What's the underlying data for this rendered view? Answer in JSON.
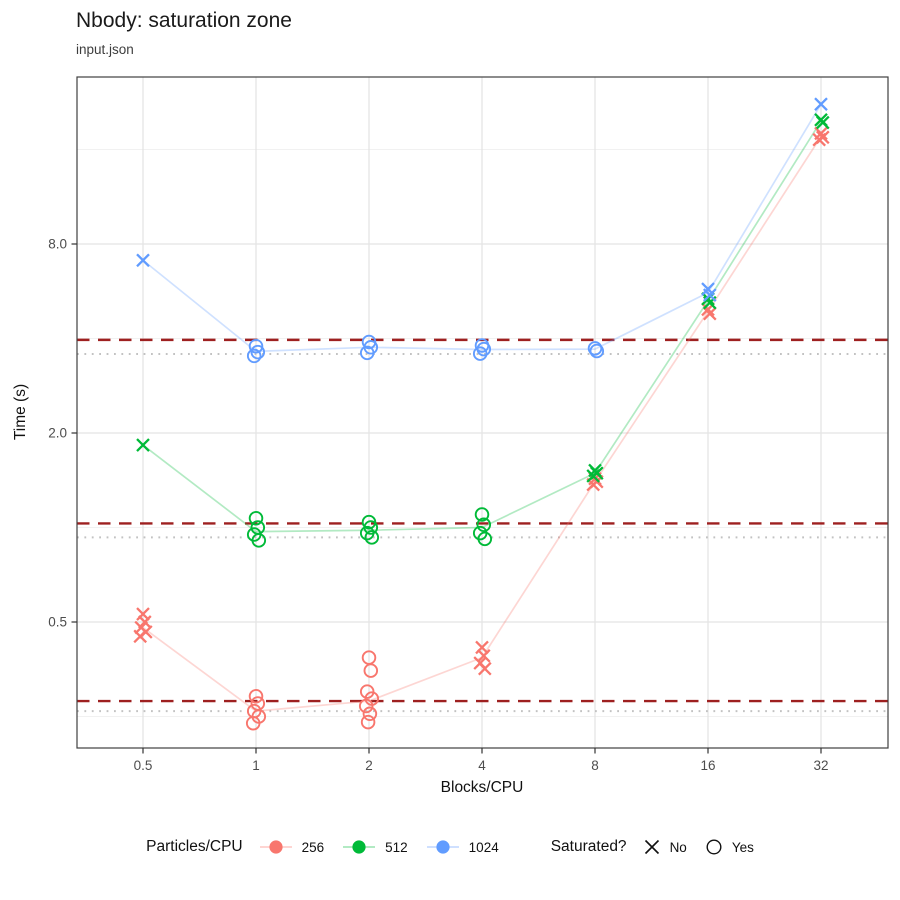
{
  "header": {
    "title": "Nbody: saturation zone",
    "subtitle": "input.json"
  },
  "axes": {
    "x_label": "Blocks/CPU",
    "y_label": "Time (s)",
    "x_tick_labels": [
      "0.5",
      "1",
      "2",
      "4",
      "8",
      "16",
      "32"
    ],
    "y_tick_labels": [
      "0.5",
      "2.0",
      "8.0"
    ]
  },
  "legend": {
    "color_title": "Particles/CPU",
    "color_items": [
      {
        "label": "256",
        "color": "#F8766D"
      },
      {
        "label": "512",
        "color": "#00BA38"
      },
      {
        "label": "1024",
        "color": "#619CFF"
      }
    ],
    "shape_title": "Saturated?",
    "shape_items": [
      {
        "label": "No",
        "shape": "x"
      },
      {
        "label": "Yes",
        "shape": "circle"
      }
    ]
  },
  "colors": {
    "dashed_refline": "#9E2020",
    "dotted_refline": "#C2C2C2",
    "grid_major": "#E4E4E4",
    "grid_minor": "#F1F1F1",
    "panel_border": "#404040",
    "tick_text": "#4d4d4d"
  },
  "chart_data": {
    "type": "scatter",
    "title": "Nbody: saturation zone",
    "subtitle": "input.json",
    "xlabel": "Blocks/CPU",
    "ylabel": "Time (s)",
    "x_scale": "log2",
    "y_scale": "log2",
    "grid": true,
    "legend_position": "bottom",
    "x_ticks": [
      0.5,
      1,
      2,
      4,
      8,
      16,
      32
    ],
    "y_major_ticks": [
      0.5,
      2.0,
      8.0
    ],
    "y_minor_gridlines": [
      0.25,
      1.0,
      4.0,
      16.0
    ],
    "xlim": [
      0.33,
      48
    ],
    "ylim": [
      0.2,
      27.5
    ],
    "hlines_dashed": {
      "style": "dashed",
      "color": "#9E2020",
      "values": [
        3.96,
        1.03,
        0.28
      ]
    },
    "hlines_dotted": {
      "style": "dotted",
      "color": "#C2C2C2",
      "values": [
        3.57,
        0.93,
        0.26
      ]
    },
    "series": [
      {
        "name": "256",
        "color": "#F8766D",
        "clusters": [
          {
            "x": 0.5,
            "shape": "x",
            "saturated": false,
            "times": [
              0.53,
              0.5,
              0.48,
              0.465,
              0.45
            ]
          },
          {
            "x": 1,
            "shape": "circle",
            "saturated": true,
            "times": [
              0.29,
              0.275,
              0.26,
              0.25,
              0.238
            ]
          },
          {
            "x": 2,
            "shape": "circle",
            "saturated": true,
            "times": [
              0.385,
              0.35,
              0.3,
              0.285,
              0.27,
              0.255,
              0.24
            ]
          },
          {
            "x": 4,
            "shape": "x",
            "saturated": false,
            "times": [
              0.415,
              0.39,
              0.37,
              0.355
            ]
          },
          {
            "x": 8,
            "shape": "x",
            "saturated": false,
            "times": [
              1.43,
              1.4,
              1.37
            ]
          },
          {
            "x": 16,
            "shape": "x",
            "saturated": false,
            "times": [
              4.95,
              4.8
            ]
          },
          {
            "x": 32,
            "shape": "x",
            "saturated": false,
            "times": [
              18.0,
              17.5,
              17.2
            ]
          }
        ],
        "trend": [
          0.48,
          0.26,
          0.28,
          0.385,
          1.4,
          4.88,
          17.6
        ]
      },
      {
        "name": "512",
        "color": "#00BA38",
        "clusters": [
          {
            "x": 0.5,
            "shape": "x",
            "saturated": false,
            "times": [
              1.83
            ]
          },
          {
            "x": 1,
            "shape": "circle",
            "saturated": true,
            "times": [
              1.07,
              1.0,
              0.95,
              0.91
            ]
          },
          {
            "x": 2,
            "shape": "circle",
            "saturated": true,
            "times": [
              1.04,
              1.0,
              0.96,
              0.93
            ]
          },
          {
            "x": 4,
            "shape": "circle",
            "saturated": true,
            "times": [
              1.1,
              1.02,
              0.96,
              0.92
            ]
          },
          {
            "x": 8,
            "shape": "x",
            "saturated": false,
            "times": [
              1.52,
              1.49,
              1.46
            ]
          },
          {
            "x": 16,
            "shape": "x",
            "saturated": false,
            "times": [
              5.35,
              5.2
            ]
          },
          {
            "x": 32,
            "shape": "x",
            "saturated": false,
            "times": [
              19.9,
              19.5
            ]
          }
        ],
        "trend": [
          1.83,
          0.97,
          0.98,
          1.0,
          1.49,
          5.28,
          19.7
        ]
      },
      {
        "name": "1024",
        "color": "#619CFF",
        "clusters": [
          {
            "x": 0.5,
            "shape": "x",
            "saturated": false,
            "times": [
              7.1
            ]
          },
          {
            "x": 1,
            "shape": "circle",
            "saturated": true,
            "times": [
              3.78,
              3.62,
              3.52
            ]
          },
          {
            "x": 2,
            "shape": "circle",
            "saturated": true,
            "times": [
              3.9,
              3.75,
              3.6
            ]
          },
          {
            "x": 4,
            "shape": "circle",
            "saturated": true,
            "times": [
              3.8,
              3.7,
              3.58
            ]
          },
          {
            "x": 8,
            "shape": "circle",
            "saturated": true,
            "times": [
              3.72,
              3.65
            ]
          },
          {
            "x": 16,
            "shape": "x",
            "saturated": false,
            "times": [
              5.75,
              5.5
            ]
          },
          {
            "x": 32,
            "shape": "x",
            "saturated": false,
            "times": [
              22.3
            ]
          }
        ],
        "trend": [
          7.1,
          3.64,
          3.75,
          3.69,
          3.7,
          5.6,
          22.3
        ]
      }
    ]
  }
}
